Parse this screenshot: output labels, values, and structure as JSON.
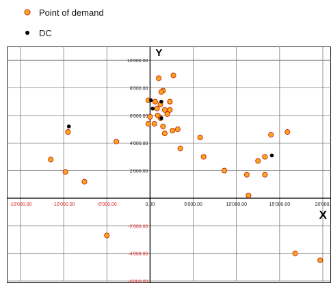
{
  "chart_data": {
    "type": "scatter",
    "title": "",
    "xlabel": "X",
    "ylabel": "Y",
    "xlim": [
      -15000,
      20000
    ],
    "ylim": [
      -6000,
      11000
    ],
    "grid": true,
    "legend_position": "top-left",
    "x_ticks": [
      -15000,
      -10000,
      -5000,
      0,
      5000,
      10000,
      15000,
      20000
    ],
    "x_tick_labels": [
      "-15'000.00",
      "-10'000.00",
      "-5'000.00",
      "0.00",
      "5'000.00",
      "10'000.00",
      "15'000.00",
      "20'000."
    ],
    "y_ticks": [
      -6000,
      -4000,
      -2000,
      0,
      2000,
      4000,
      6000,
      8000,
      10000
    ],
    "y_tick_labels": [
      "-6'000.00",
      "-4'000.00",
      "-2'000.00",
      "0.00",
      "2'000.00",
      "4'000.00",
      "6'000.00",
      "8'000.00",
      "10'000.00"
    ],
    "colors": {
      "demand_fill": "#f5a623",
      "demand_stroke": "#cc2200",
      "dc_fill": "#000000",
      "negative_tick_label": "#dd2222",
      "positive_tick_label": "#222222",
      "grid": "#777777"
    },
    "series": [
      {
        "name": "Point of demand",
        "points": [
          [
            1000,
            8700
          ],
          [
            2700,
            8900
          ],
          [
            1500,
            7800
          ],
          [
            1300,
            7700
          ],
          [
            -200,
            7100
          ],
          [
            600,
            7000
          ],
          [
            1200,
            6800
          ],
          [
            2300,
            7000
          ],
          [
            800,
            6500
          ],
          [
            1700,
            6400
          ],
          [
            2300,
            6400
          ],
          [
            2000,
            6100
          ],
          [
            0,
            5900
          ],
          [
            900,
            6000
          ],
          [
            1200,
            5800
          ],
          [
            500,
            5400
          ],
          [
            -200,
            5400
          ],
          [
            1500,
            5200
          ],
          [
            1700,
            4700
          ],
          [
            2600,
            4900
          ],
          [
            3200,
            5000
          ],
          [
            -9500,
            4800
          ],
          [
            -3900,
            4100
          ],
          [
            -11500,
            2800
          ],
          [
            -9800,
            1900
          ],
          [
            -7600,
            1200
          ],
          [
            3500,
            3600
          ],
          [
            5800,
            4400
          ],
          [
            6200,
            3000
          ],
          [
            8600,
            2000
          ],
          [
            11200,
            1700
          ],
          [
            12500,
            2700
          ],
          [
            13300,
            3000
          ],
          [
            13300,
            1700
          ],
          [
            14000,
            4600
          ],
          [
            15900,
            4800
          ],
          [
            11400,
            200
          ],
          [
            -5000,
            -2700
          ],
          [
            16800,
            -4000
          ],
          [
            19700,
            -4500
          ]
        ]
      },
      {
        "name": "DC",
        "points": [
          [
            -9400,
            5200
          ],
          [
            100,
            7100
          ],
          [
            1300,
            7000
          ],
          [
            300,
            6500
          ],
          [
            1300,
            5800
          ],
          [
            14100,
            3100
          ]
        ]
      }
    ]
  }
}
